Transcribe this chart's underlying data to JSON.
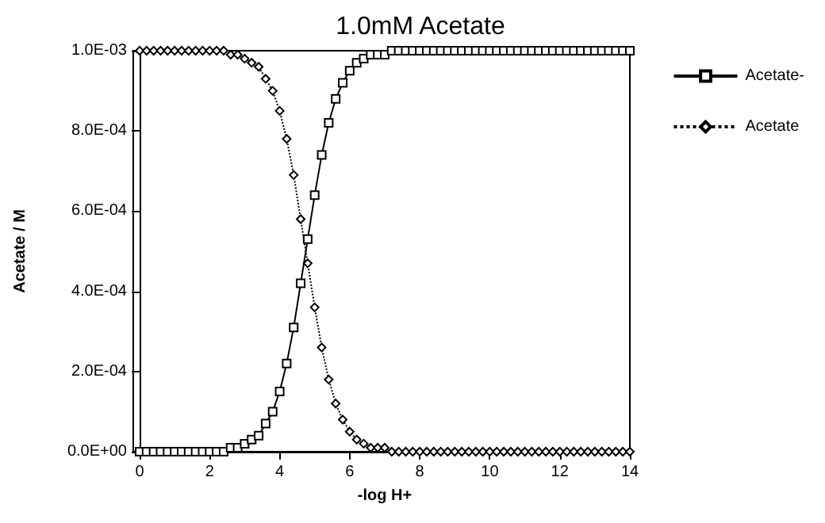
{
  "chart_data": {
    "type": "line",
    "title": "1.0mM Acetate",
    "xlabel": "-log H+",
    "ylabel": "Acetate / M",
    "x": [
      0,
      0.2,
      0.4,
      0.6,
      0.8,
      1,
      1.2,
      1.4,
      1.6,
      1.8,
      2,
      2.2,
      2.4,
      2.6,
      2.8,
      3,
      3.2,
      3.4,
      3.6,
      3.8,
      4,
      4.2,
      4.4,
      4.6,
      4.8,
      5,
      5.2,
      5.4,
      5.6,
      5.8,
      6,
      6.2,
      6.4,
      6.6,
      6.8,
      7,
      7.2,
      7.4,
      7.6,
      7.8,
      8,
      8.2,
      8.4,
      8.6,
      8.8,
      9,
      9.2,
      9.4,
      9.6,
      9.8,
      10,
      10.2,
      10.4,
      10.6,
      10.8,
      11,
      11.2,
      11.4,
      11.6,
      11.8,
      12,
      12.2,
      12.4,
      12.6,
      12.8,
      13,
      13.2,
      13.4,
      13.6,
      13.8,
      14
    ],
    "series": [
      {
        "name": "Acetate-",
        "color": "#000000",
        "marker": "square",
        "line_style": "solid",
        "values": [
          0,
          0,
          0,
          0,
          0,
          0,
          0,
          0,
          0,
          0,
          0,
          0,
          0,
          1e-05,
          1e-05,
          2e-05,
          3e-05,
          4e-05,
          7e-05,
          0.0001,
          0.00015,
          0.00022,
          0.00031,
          0.00042,
          0.00053,
          0.00064,
          0.00074,
          0.00082,
          0.00088,
          0.00092,
          0.00095,
          0.00097,
          0.00098,
          0.00099,
          0.00099,
          0.00099,
          0.001,
          0.001,
          0.001,
          0.001,
          0.001,
          0.001,
          0.001,
          0.001,
          0.001,
          0.001,
          0.001,
          0.001,
          0.001,
          0.001,
          0.001,
          0.001,
          0.001,
          0.001,
          0.001,
          0.001,
          0.001,
          0.001,
          0.001,
          0.001,
          0.001,
          0.001,
          0.001,
          0.001,
          0.001,
          0.001,
          0.001,
          0.001,
          0.001,
          0.001,
          0.001
        ]
      },
      {
        "name": "Acetate",
        "color": "#000000",
        "marker": "diamond",
        "line_style": "dotted",
        "values": [
          0.001,
          0.001,
          0.001,
          0.001,
          0.001,
          0.001,
          0.001,
          0.001,
          0.001,
          0.001,
          0.001,
          0.001,
          0.001,
          0.00099,
          0.00099,
          0.00098,
          0.00097,
          0.00096,
          0.00093,
          0.0009,
          0.00085,
          0.00078,
          0.00069,
          0.00058,
          0.00047,
          0.00036,
          0.00026,
          0.00018,
          0.00012,
          8e-05,
          5e-05,
          3e-05,
          2e-05,
          1e-05,
          1e-05,
          1e-05,
          0,
          0,
          0,
          0,
          0,
          0,
          0,
          0,
          0,
          0,
          0,
          0,
          0,
          0,
          0,
          0,
          0,
          0,
          0,
          0,
          0,
          0,
          0,
          0,
          0,
          0,
          0,
          0,
          0,
          0,
          0,
          0,
          0,
          0,
          0
        ]
      }
    ],
    "xlim": [
      0,
      14
    ],
    "xticks": [
      0,
      2,
      4,
      6,
      8,
      10,
      12,
      14
    ],
    "ylim": [
      0,
      0.001
    ],
    "yticks": [
      {
        "value": 0,
        "label": "0.0E+00"
      },
      {
        "value": 0.0002,
        "label": "2.0E-04"
      },
      {
        "value": 0.0004,
        "label": "4.0E-04"
      },
      {
        "value": 0.0006,
        "label": "6.0E-04"
      },
      {
        "value": 0.0008,
        "label": "8.0E-04"
      },
      {
        "value": 0.001,
        "label": "1.0E-03"
      }
    ],
    "grid": false,
    "legend": "top right"
  }
}
